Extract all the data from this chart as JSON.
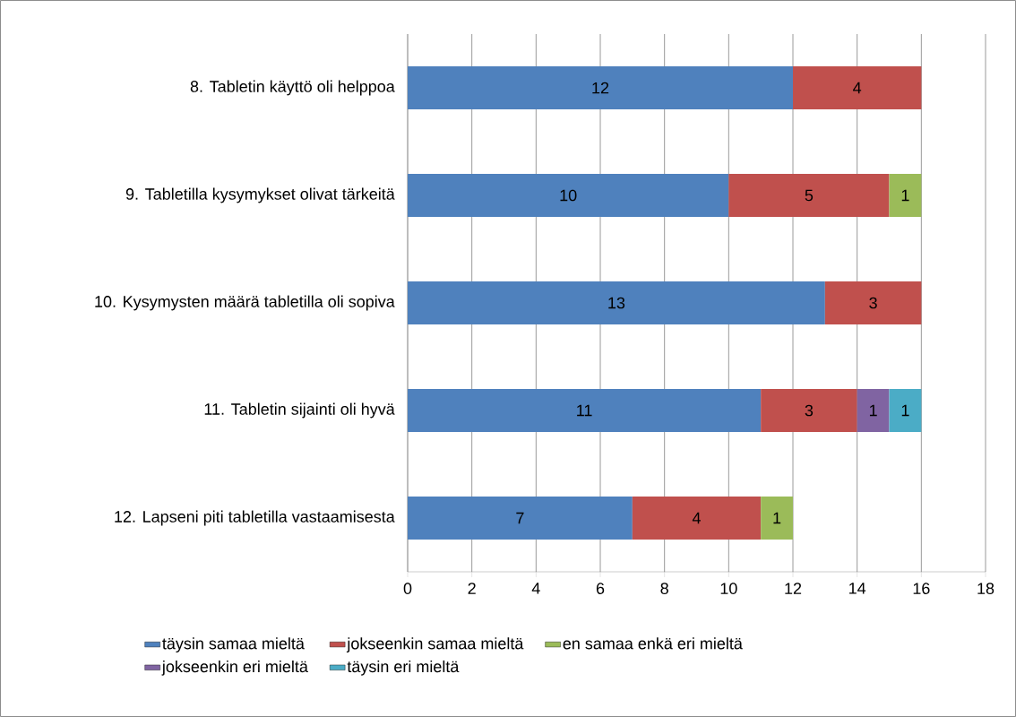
{
  "chart_data": {
    "type": "bar",
    "orientation": "horizontal",
    "stacked": true,
    "data_labels": true,
    "grid": "x",
    "legend": "bottom",
    "categories": [
      "8. Tabletin käyttö oli helppoa",
      "9. Tabletilla kysymykset olivat tärkeitä",
      "10. Kysymysten määrä tabletilla oli sopiva",
      "11. Tabletin sijainti oli hyvä",
      "12. Lapseni piti tabletilla vastaamisesta"
    ],
    "series": [
      {
        "name": "täysin samaa mieltä",
        "color": "#4f81bd",
        "values": [
          12,
          10,
          13,
          11,
          7
        ]
      },
      {
        "name": "jokseenkin samaa mieltä",
        "color": "#c0504d",
        "values": [
          4,
          5,
          3,
          3,
          4
        ]
      },
      {
        "name": "en samaa enkä eri mieltä",
        "color": "#9bbb59",
        "values": [
          null,
          1,
          null,
          null,
          1
        ]
      },
      {
        "name": "jokseenkin eri mieltä",
        "color": "#8064a2",
        "values": [
          null,
          null,
          null,
          1,
          null
        ]
      },
      {
        "name": "täysin eri mieltä",
        "color": "#4bacc6",
        "values": [
          null,
          null,
          null,
          1,
          null
        ]
      }
    ],
    "xlim": [
      0,
      18
    ],
    "xticks": [
      0,
      2,
      4,
      6,
      8,
      10,
      12,
      14,
      16,
      18
    ]
  }
}
